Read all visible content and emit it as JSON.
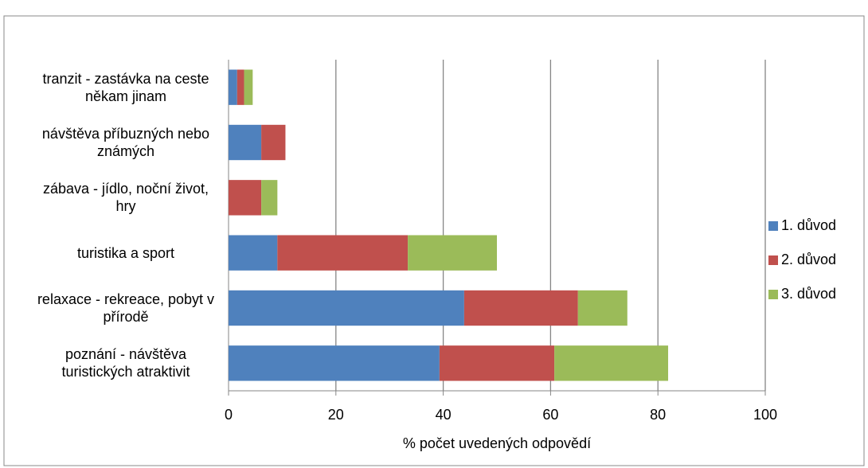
{
  "chart_data": {
    "type": "stacked-bar-horizontal",
    "categories": [
      "tranzit - zastávka na ceste někam jinam",
      "návštěva příbuzných nebo známých",
      "zábava - jídlo, noční život, hry",
      "turistika a sport",
      "relaxace - rekreace, pobyt v přírodě",
      "poznání - návštěva turistických atraktivit"
    ],
    "series": [
      {
        "name": "1. důvod",
        "color": "#4f81bd",
        "values": [
          1.6,
          6.1,
          0,
          9.1,
          43.9,
          39.3
        ]
      },
      {
        "name": "2. důvod",
        "color": "#c0504d",
        "values": [
          1.3,
          4.5,
          6.1,
          24.3,
          21.2,
          21.4
        ]
      },
      {
        "name": "3. důvod",
        "color": "#9bbb59",
        "values": [
          1.6,
          0,
          3.0,
          16.6,
          9.2,
          21.2
        ]
      }
    ],
    "xlabel": "% počet uvedených odpovědí",
    "xlim": [
      0,
      100
    ],
    "xticks": [
      0,
      20,
      40,
      60,
      80,
      100
    ],
    "grid": true,
    "legend": "right"
  }
}
